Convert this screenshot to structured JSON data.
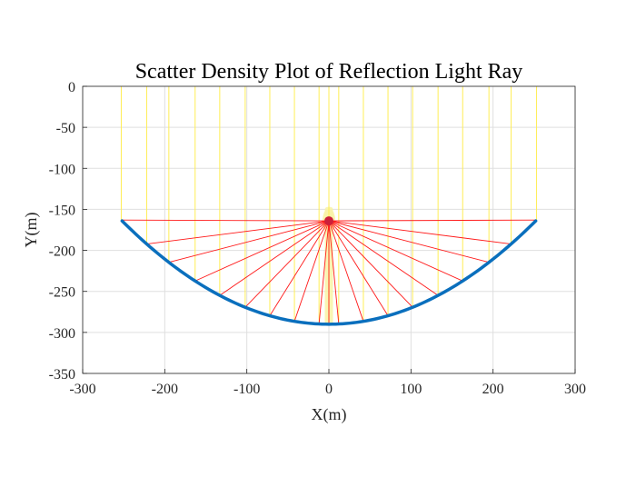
{
  "chart_data": {
    "type": "scatter",
    "title": "Scatter Density Plot of Reflection Light Ray",
    "xlabel": "X(m)",
    "ylabel": "Y(m)",
    "xlim": [
      -300,
      300
    ],
    "ylim": [
      -350,
      0
    ],
    "xticks": [
      -300,
      -200,
      -100,
      0,
      100,
      200,
      300
    ],
    "yticks": [
      0,
      -50,
      -100,
      -150,
      -200,
      -250,
      -300,
      -350
    ],
    "grid": true,
    "colors": {
      "incident": "#ffee55",
      "reflected": "#ff1a1a",
      "mirror": "#0a6fbd",
      "focus": "#cc1f3a",
      "density": "#f8f3a6",
      "grid": "#dfdfdf"
    },
    "mirror": {
      "type": "parabola",
      "vertex": [
        0,
        -290
      ],
      "x_range": [
        -252,
        252
      ],
      "a": 0.001984
    },
    "focus": [
      0,
      -164
    ],
    "rays_x": [
      -253,
      -222,
      -195,
      -163,
      -133,
      -102,
      -72,
      -42,
      -12,
      0,
      12,
      42,
      72,
      102,
      133,
      163,
      195,
      222,
      253
    ]
  }
}
